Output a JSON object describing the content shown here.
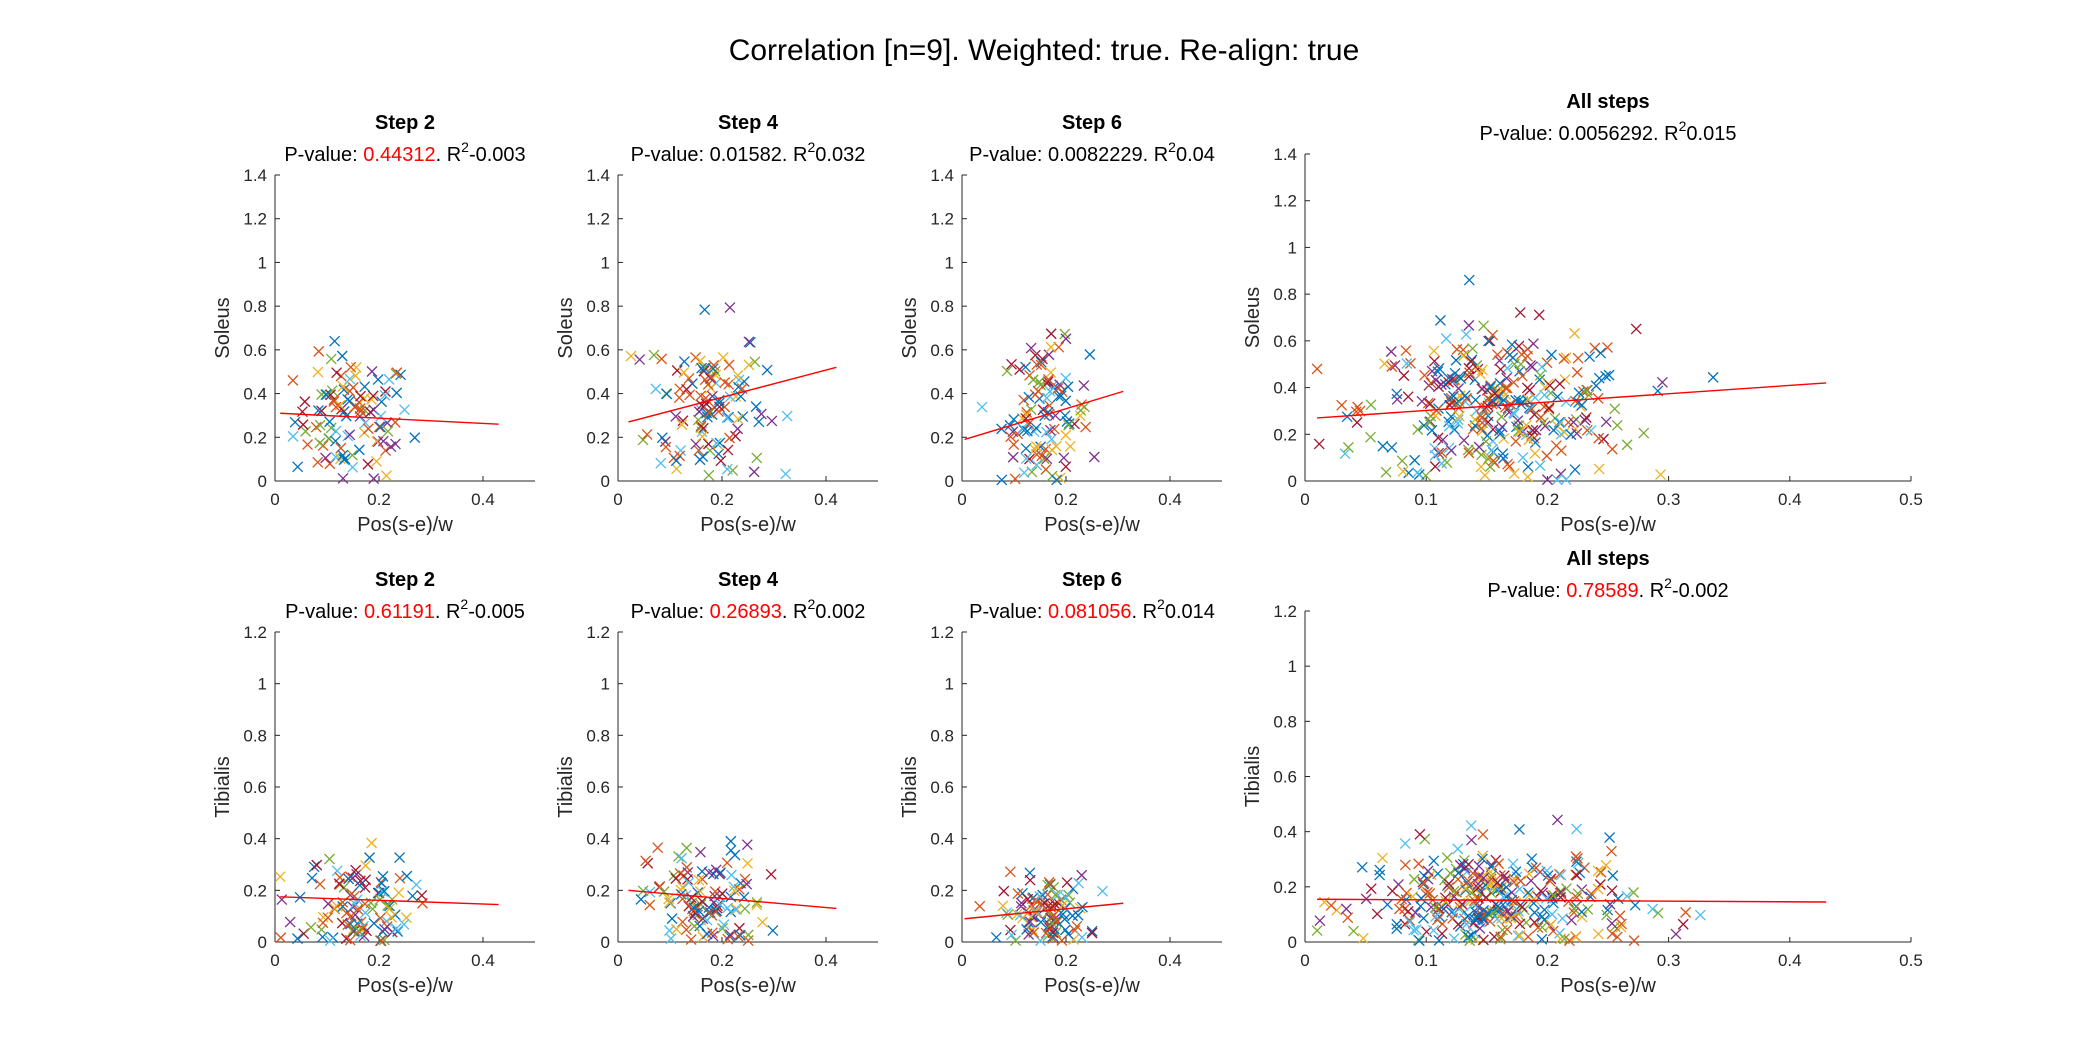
{
  "figure": {
    "title": "Correlation [n=9]. Weighted: true. Re-align: true"
  },
  "series_colors": [
    "#0072BD",
    "#D95319",
    "#EDB120",
    "#7E2F8E",
    "#77AC30",
    "#4DBEEE",
    "#A2142F",
    "#0072BD",
    "#D95319"
  ],
  "significance_color_red": "#FF0000",
  "fit_color": "#FF0000",
  "chart_data": [
    {
      "type": "scatter",
      "title": "Step 2",
      "p_label": "P-value:",
      "p_value": "0.44312",
      "p_significant": false,
      "r2_label": "R",
      "r2_sup": "2",
      "r2_value": "-0.003",
      "xlabel": "Pos(s-e)/w",
      "ylabel": "Soleus",
      "xlim": [
        0,
        0.5
      ],
      "ylim": [
        0,
        1.4
      ],
      "xticks": [
        "0",
        "0.2",
        "0.4"
      ],
      "yticks": [
        "0",
        "0.2",
        "0.4",
        "0.6",
        "0.8",
        "1",
        "1.2",
        "1.4"
      ],
      "n_points": 110,
      "x_center": 0.15,
      "x_spread": 0.08,
      "y_center": 0.28,
      "y_spread": 0.18,
      "fit_line": [
        [
          0.01,
          0.31
        ],
        [
          0.43,
          0.26
        ]
      ]
    },
    {
      "type": "scatter",
      "title": "Step 4",
      "p_label": "P-value:",
      "p_value": "0.01582",
      "p_significant": true,
      "r2_label": "R",
      "r2_sup": "2",
      "r2_value": "0.032",
      "xlabel": "Pos(s-e)/w",
      "ylabel": "Soleus",
      "xlim": [
        0,
        0.5
      ],
      "ylim": [
        0,
        1.4
      ],
      "xticks": [
        "0",
        "0.2",
        "0.4"
      ],
      "yticks": [
        "0",
        "0.2",
        "0.4",
        "0.6",
        "0.8",
        "1",
        "1.2",
        "1.4"
      ],
      "n_points": 120,
      "x_center": 0.17,
      "x_spread": 0.08,
      "y_center": 0.35,
      "y_spread": 0.24,
      "fit_line": [
        [
          0.02,
          0.27
        ],
        [
          0.42,
          0.52
        ]
      ]
    },
    {
      "type": "scatter",
      "title": "Step 6",
      "p_label": "P-value:",
      "p_value": "0.0082229",
      "p_significant": true,
      "r2_label": "R",
      "r2_sup": "2",
      "r2_value": "0.04",
      "xlabel": "Pos(s-e)/w",
      "ylabel": "Soleus",
      "xlim": [
        0,
        0.5
      ],
      "ylim": [
        0,
        1.4
      ],
      "xticks": [
        "0",
        "0.2",
        "0.4"
      ],
      "yticks": [
        "0",
        "0.2",
        "0.4",
        "0.6",
        "0.8",
        "1",
        "1.2",
        "1.4"
      ],
      "n_points": 110,
      "x_center": 0.16,
      "x_spread": 0.06,
      "y_center": 0.3,
      "y_spread": 0.2,
      "fit_line": [
        [
          0.005,
          0.19
        ],
        [
          0.31,
          0.41
        ]
      ]
    },
    {
      "type": "scatter",
      "title": "All steps",
      "p_label": "P-value:",
      "p_value": "0.0056292",
      "p_significant": true,
      "r2_label": "R",
      "r2_sup": "2",
      "r2_value": "0.015",
      "xlabel": "Pos(s-e)/w",
      "ylabel": "Soleus",
      "xlim": [
        0,
        0.5
      ],
      "ylim": [
        0,
        1.4
      ],
      "xticks": [
        "0",
        "0.1",
        "0.2",
        "0.3",
        "0.4",
        "0.5"
      ],
      "yticks": [
        "0",
        "0.2",
        "0.4",
        "0.6",
        "0.8",
        "1",
        "1.2",
        "1.4"
      ],
      "n_points": 340,
      "x_center": 0.16,
      "x_spread": 0.08,
      "y_center": 0.31,
      "y_spread": 0.21,
      "fit_line": [
        [
          0.01,
          0.27
        ],
        [
          0.43,
          0.42
        ]
      ]
    },
    {
      "type": "scatter",
      "title": "Step 2",
      "p_label": "P-value:",
      "p_value": "0.61191",
      "p_significant": false,
      "r2_label": "R",
      "r2_sup": "2",
      "r2_value": "-0.005",
      "xlabel": "Pos(s-e)/w",
      "ylabel": "Tibialis",
      "xlim": [
        0,
        0.5
      ],
      "ylim": [
        0,
        1.2
      ],
      "xticks": [
        "0",
        "0.2",
        "0.4"
      ],
      "yticks": [
        "0",
        "0.2",
        "0.4",
        "0.6",
        "0.8",
        "1",
        "1.2"
      ],
      "n_points": 110,
      "x_center": 0.15,
      "x_spread": 0.08,
      "y_center": 0.14,
      "y_spread": 0.13,
      "fit_line": [
        [
          0.01,
          0.175
        ],
        [
          0.43,
          0.145
        ]
      ]
    },
    {
      "type": "scatter",
      "title": "Step 4",
      "p_label": "P-value:",
      "p_value": "0.26893",
      "p_significant": false,
      "r2_label": "R",
      "r2_sup": "2",
      "r2_value": "0.002",
      "xlabel": "Pos(s-e)/w",
      "ylabel": "Tibialis",
      "xlim": [
        0,
        0.5
      ],
      "ylim": [
        0,
        1.2
      ],
      "xticks": [
        "0",
        "0.2",
        "0.4"
      ],
      "yticks": [
        "0",
        "0.2",
        "0.4",
        "0.6",
        "0.8",
        "1",
        "1.2"
      ],
      "n_points": 120,
      "x_center": 0.17,
      "x_spread": 0.08,
      "y_center": 0.15,
      "y_spread": 0.14,
      "fit_line": [
        [
          0.02,
          0.2
        ],
        [
          0.42,
          0.13
        ]
      ]
    },
    {
      "type": "scatter",
      "title": "Step 6",
      "p_label": "P-value:",
      "p_value": "0.081056",
      "p_significant": false,
      "r2_label": "R",
      "r2_sup": "2",
      "r2_value": "0.014",
      "xlabel": "Pos(s-e)/w",
      "ylabel": "Tibialis",
      "xlim": [
        0,
        0.5
      ],
      "ylim": [
        0,
        1.2
      ],
      "xticks": [
        "0",
        "0.2",
        "0.4"
      ],
      "yticks": [
        "0",
        "0.2",
        "0.4",
        "0.6",
        "0.8",
        "1",
        "1.2"
      ],
      "n_points": 110,
      "x_center": 0.16,
      "x_spread": 0.06,
      "y_center": 0.11,
      "y_spread": 0.09,
      "fit_line": [
        [
          0.005,
          0.09
        ],
        [
          0.31,
          0.15
        ]
      ]
    },
    {
      "type": "scatter",
      "title": "All steps",
      "p_label": "P-value:",
      "p_value": "0.78589",
      "p_significant": false,
      "r2_label": "R",
      "r2_sup": "2",
      "r2_value": "-0.002",
      "xlabel": "Pos(s-e)/w",
      "ylabel": "Tibialis",
      "xlim": [
        0,
        0.5
      ],
      "ylim": [
        0,
        1.2
      ],
      "xticks": [
        "0",
        "0.1",
        "0.2",
        "0.3",
        "0.4",
        "0.5"
      ],
      "yticks": [
        "0",
        "0.2",
        "0.4",
        "0.6",
        "0.8",
        "1",
        "1.2"
      ],
      "n_points": 340,
      "x_center": 0.16,
      "x_spread": 0.08,
      "y_center": 0.14,
      "y_spread": 0.13,
      "fit_line": [
        [
          0.01,
          0.155
        ],
        [
          0.43,
          0.145
        ]
      ]
    }
  ]
}
